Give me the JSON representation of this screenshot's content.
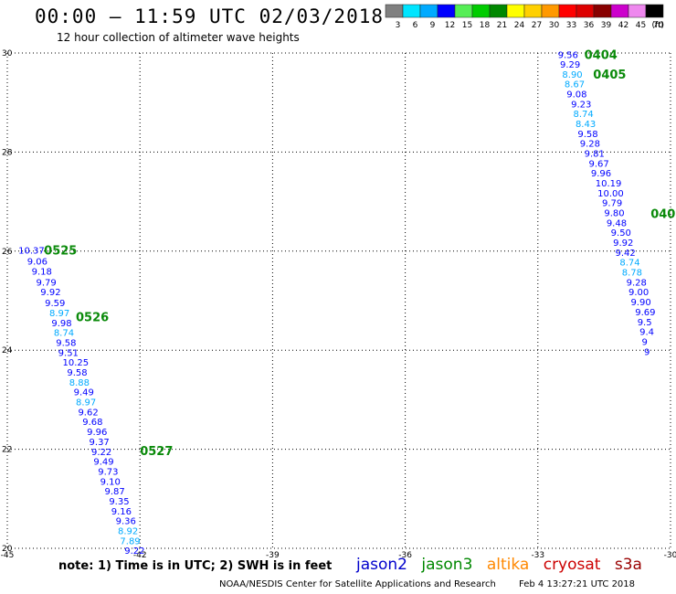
{
  "header": {
    "title": "00:00 – 11:59 UTC 02/03/2018",
    "subtitle": "12 hour collection of altimeter wave heights"
  },
  "footer": {
    "note": "note: 1) Time is in UTC; 2) SWH is in feet",
    "satellites": [
      {
        "name": "jason2",
        "color": "#0000cc"
      },
      {
        "name": "jason3",
        "color": "#008800"
      },
      {
        "name": "altika",
        "color": "#ff8800"
      },
      {
        "name": "cryosat",
        "color": "#cc0000"
      },
      {
        "name": "s3a",
        "color": "#990000"
      }
    ],
    "credit_org": "NOAA/NESDIS Center for Satellite Applications and Research",
    "credit_time": "Feb  4 13:27:21 UTC 2018"
  },
  "color_scale": {
    "unit": "(ft)",
    "labels": [
      "3",
      "6",
      "9",
      "12",
      "15",
      "18",
      "21",
      "24",
      "27",
      "30",
      "33",
      "36",
      "39",
      "42",
      "45",
      "70"
    ],
    "colors": [
      "#808080",
      "#00e5ff",
      "#00aaff",
      "#0000ff",
      "#55ee55",
      "#00cc00",
      "#008800",
      "#ffff00",
      "#ffd000",
      "#ff9900",
      "#ff0000",
      "#dd0000",
      "#880000",
      "#cc00cc",
      "#ee88ee",
      "#000000"
    ]
  },
  "chart_data": {
    "type": "scatter",
    "title": "00:00 – 11:59 UTC 02/03/2018",
    "subtitle": "12 hour collection of altimeter wave heights",
    "xlim": [
      -45,
      -30
    ],
    "ylim": [
      20,
      30
    ],
    "x_ticks": [
      "-45",
      "-42",
      "-39",
      "-36",
      "-33",
      "-30"
    ],
    "y_ticks": [
      "20",
      "22",
      "24",
      "26",
      "28",
      "30"
    ],
    "x_tick_values": [
      -45,
      -42,
      -39,
      -36,
      -33,
      -30
    ],
    "y_tick_values": [
      20,
      22,
      24,
      26,
      28,
      30
    ],
    "grid": true,
    "series": [
      {
        "tracks": [
          "0525",
          "0526",
          "0527"
        ],
        "track_points": [
          {
            "label": "0525",
            "x": -44.17,
            "y": 26.02
          },
          {
            "label": "0526",
            "x": -43.45,
            "y": 24.68
          },
          {
            "label": "0527",
            "x": -42.0,
            "y": 21.97
          }
        ],
        "points": [
          {
            "x": -44.75,
            "y": 26.02,
            "v": "10.37"
          },
          {
            "x": -44.55,
            "y": 25.8,
            "v": "9.06"
          },
          {
            "x": -44.45,
            "y": 25.6,
            "v": "9.18"
          },
          {
            "x": -44.35,
            "y": 25.38,
            "v": "9.79"
          },
          {
            "x": -44.25,
            "y": 25.18,
            "v": "9.92"
          },
          {
            "x": -44.15,
            "y": 24.96,
            "v": "9.59"
          },
          {
            "x": -44.05,
            "y": 24.76,
            "v": "8.97"
          },
          {
            "x": -44.0,
            "y": 24.56,
            "v": "9.98"
          },
          {
            "x": -43.95,
            "y": 24.36,
            "v": "8.74"
          },
          {
            "x": -43.9,
            "y": 24.16,
            "v": "9.58"
          },
          {
            "x": -43.85,
            "y": 23.96,
            "v": "9.51"
          },
          {
            "x": -43.75,
            "y": 23.76,
            "v": "10.25"
          },
          {
            "x": -43.65,
            "y": 23.56,
            "v": "9.58"
          },
          {
            "x": -43.6,
            "y": 23.36,
            "v": "8.88"
          },
          {
            "x": -43.5,
            "y": 23.16,
            "v": "9.49"
          },
          {
            "x": -43.45,
            "y": 22.96,
            "v": "8.97"
          },
          {
            "x": -43.4,
            "y": 22.76,
            "v": "9.62"
          },
          {
            "x": -43.3,
            "y": 22.56,
            "v": "9.68"
          },
          {
            "x": -43.2,
            "y": 22.36,
            "v": "9.96"
          },
          {
            "x": -43.15,
            "y": 22.16,
            "v": "9.37"
          },
          {
            "x": -43.1,
            "y": 21.96,
            "v": "9.22"
          },
          {
            "x": -43.05,
            "y": 21.76,
            "v": "9.49"
          },
          {
            "x": -42.95,
            "y": 21.56,
            "v": "9.73"
          },
          {
            "x": -42.9,
            "y": 21.36,
            "v": "9.10"
          },
          {
            "x": -42.8,
            "y": 21.16,
            "v": "9.87"
          },
          {
            "x": -42.7,
            "y": 20.96,
            "v": "9.35"
          },
          {
            "x": -42.65,
            "y": 20.76,
            "v": "9.16"
          },
          {
            "x": -42.55,
            "y": 20.56,
            "v": "9.36"
          },
          {
            "x": -42.5,
            "y": 20.36,
            "v": "8.92"
          },
          {
            "x": -42.45,
            "y": 20.16,
            "v": "7.89"
          },
          {
            "x": -42.35,
            "y": 19.96,
            "v": "9.22"
          }
        ]
      },
      {
        "tracks": [
          "0404",
          "0405",
          "040"
        ],
        "track_points": [
          {
            "label": "0404",
            "x": -31.95,
            "y": 29.97
          },
          {
            "label": "0405",
            "x": -31.75,
            "y": 29.58
          },
          {
            "label": "040",
            "x": -30.45,
            "y": 26.76
          }
        ],
        "points": [
          {
            "x": -32.55,
            "y": 29.97,
            "v": "9.56"
          },
          {
            "x": -32.5,
            "y": 29.78,
            "v": "9.29"
          },
          {
            "x": -32.45,
            "y": 29.58,
            "v": "8.90"
          },
          {
            "x": -32.4,
            "y": 29.38,
            "v": "8.67"
          },
          {
            "x": -32.35,
            "y": 29.18,
            "v": "9.08"
          },
          {
            "x": -32.25,
            "y": 28.98,
            "v": "9.23"
          },
          {
            "x": -32.2,
            "y": 28.78,
            "v": "8.74"
          },
          {
            "x": -32.15,
            "y": 28.58,
            "v": "8.43"
          },
          {
            "x": -32.1,
            "y": 28.38,
            "v": "9.58"
          },
          {
            "x": -32.05,
            "y": 28.18,
            "v": "9.28"
          },
          {
            "x": -31.95,
            "y": 27.98,
            "v": "9.81"
          },
          {
            "x": -31.85,
            "y": 27.78,
            "v": "9.67"
          },
          {
            "x": -31.8,
            "y": 27.58,
            "v": "9.96"
          },
          {
            "x": -31.7,
            "y": 27.38,
            "v": "10.19"
          },
          {
            "x": -31.65,
            "y": 27.18,
            "v": "10.00"
          },
          {
            "x": -31.55,
            "y": 26.98,
            "v": "9.79"
          },
          {
            "x": -31.5,
            "y": 26.78,
            "v": "9.80"
          },
          {
            "x": -31.45,
            "y": 26.58,
            "v": "9.48"
          },
          {
            "x": -31.35,
            "y": 26.38,
            "v": "9.50"
          },
          {
            "x": -31.3,
            "y": 26.18,
            "v": "9.92"
          },
          {
            "x": -31.25,
            "y": 25.98,
            "v": "9.42"
          },
          {
            "x": -31.15,
            "y": 25.78,
            "v": "8.74"
          },
          {
            "x": -31.1,
            "y": 25.58,
            "v": "8.78"
          },
          {
            "x": -31.0,
            "y": 25.38,
            "v": "9.28"
          },
          {
            "x": -30.95,
            "y": 25.18,
            "v": "9.00"
          },
          {
            "x": -30.9,
            "y": 24.98,
            "v": "9.90"
          },
          {
            "x": -30.8,
            "y": 24.78,
            "v": "9.69"
          },
          {
            "x": -30.75,
            "y": 24.58,
            "v": "9.5"
          },
          {
            "x": -30.7,
            "y": 24.38,
            "v": "9.4"
          },
          {
            "x": -30.65,
            "y": 24.18,
            "v": "9"
          },
          {
            "x": -30.6,
            "y": 23.98,
            "v": "9"
          }
        ]
      }
    ]
  }
}
